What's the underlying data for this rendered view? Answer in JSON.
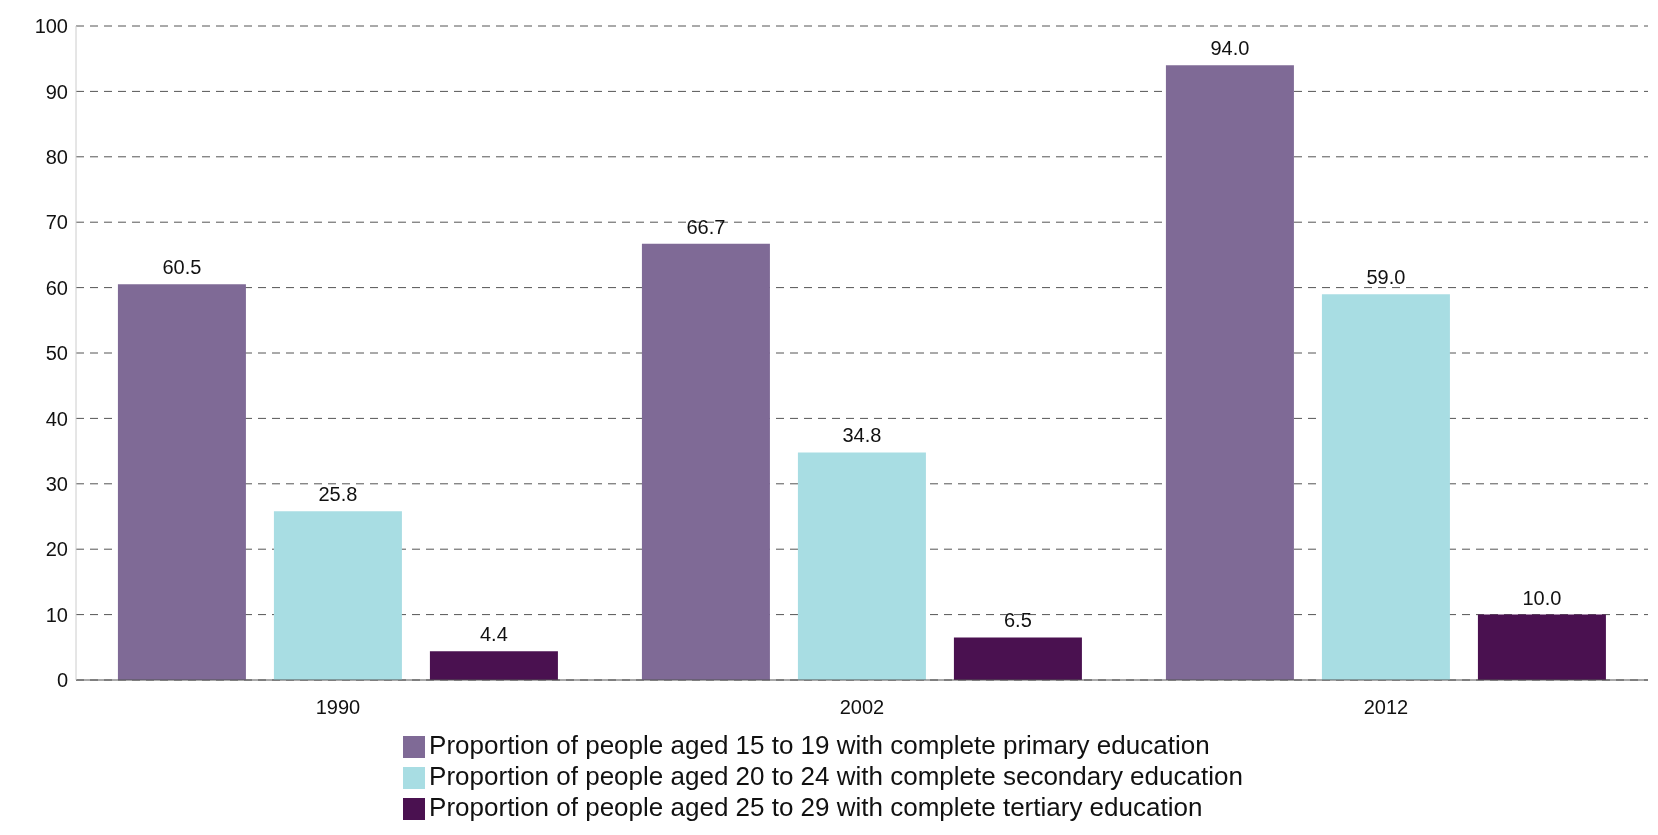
{
  "chart_data": {
    "type": "bar",
    "categories": [
      "1990",
      "2002",
      "2012"
    ],
    "series": [
      {
        "name": "Proportion of people aged 15 to 19 with complete primary education",
        "color": "#7f6a96",
        "values": [
          60.5,
          66.7,
          94.0
        ],
        "value_labels": [
          "60.5",
          "66.7",
          "94.0"
        ]
      },
      {
        "name": "Proportion of people aged 20 to 24 with complete secondary education",
        "color": "#a8dde3",
        "values": [
          25.8,
          34.8,
          59.0
        ],
        "value_labels": [
          "25.8",
          "34.8",
          "59.0"
        ]
      },
      {
        "name": "Proportion of people aged 25 to 29 with complete tertiary education",
        "color": "#4a1150",
        "values": [
          4.4,
          6.5,
          10.0
        ],
        "value_labels": [
          "4.4",
          "6.5",
          "10.0"
        ]
      }
    ],
    "ylim": [
      0,
      100
    ],
    "yticks": [
      0,
      10,
      20,
      30,
      40,
      50,
      60,
      70,
      80,
      90,
      100
    ],
    "grid": "y",
    "legend": "bottom"
  }
}
